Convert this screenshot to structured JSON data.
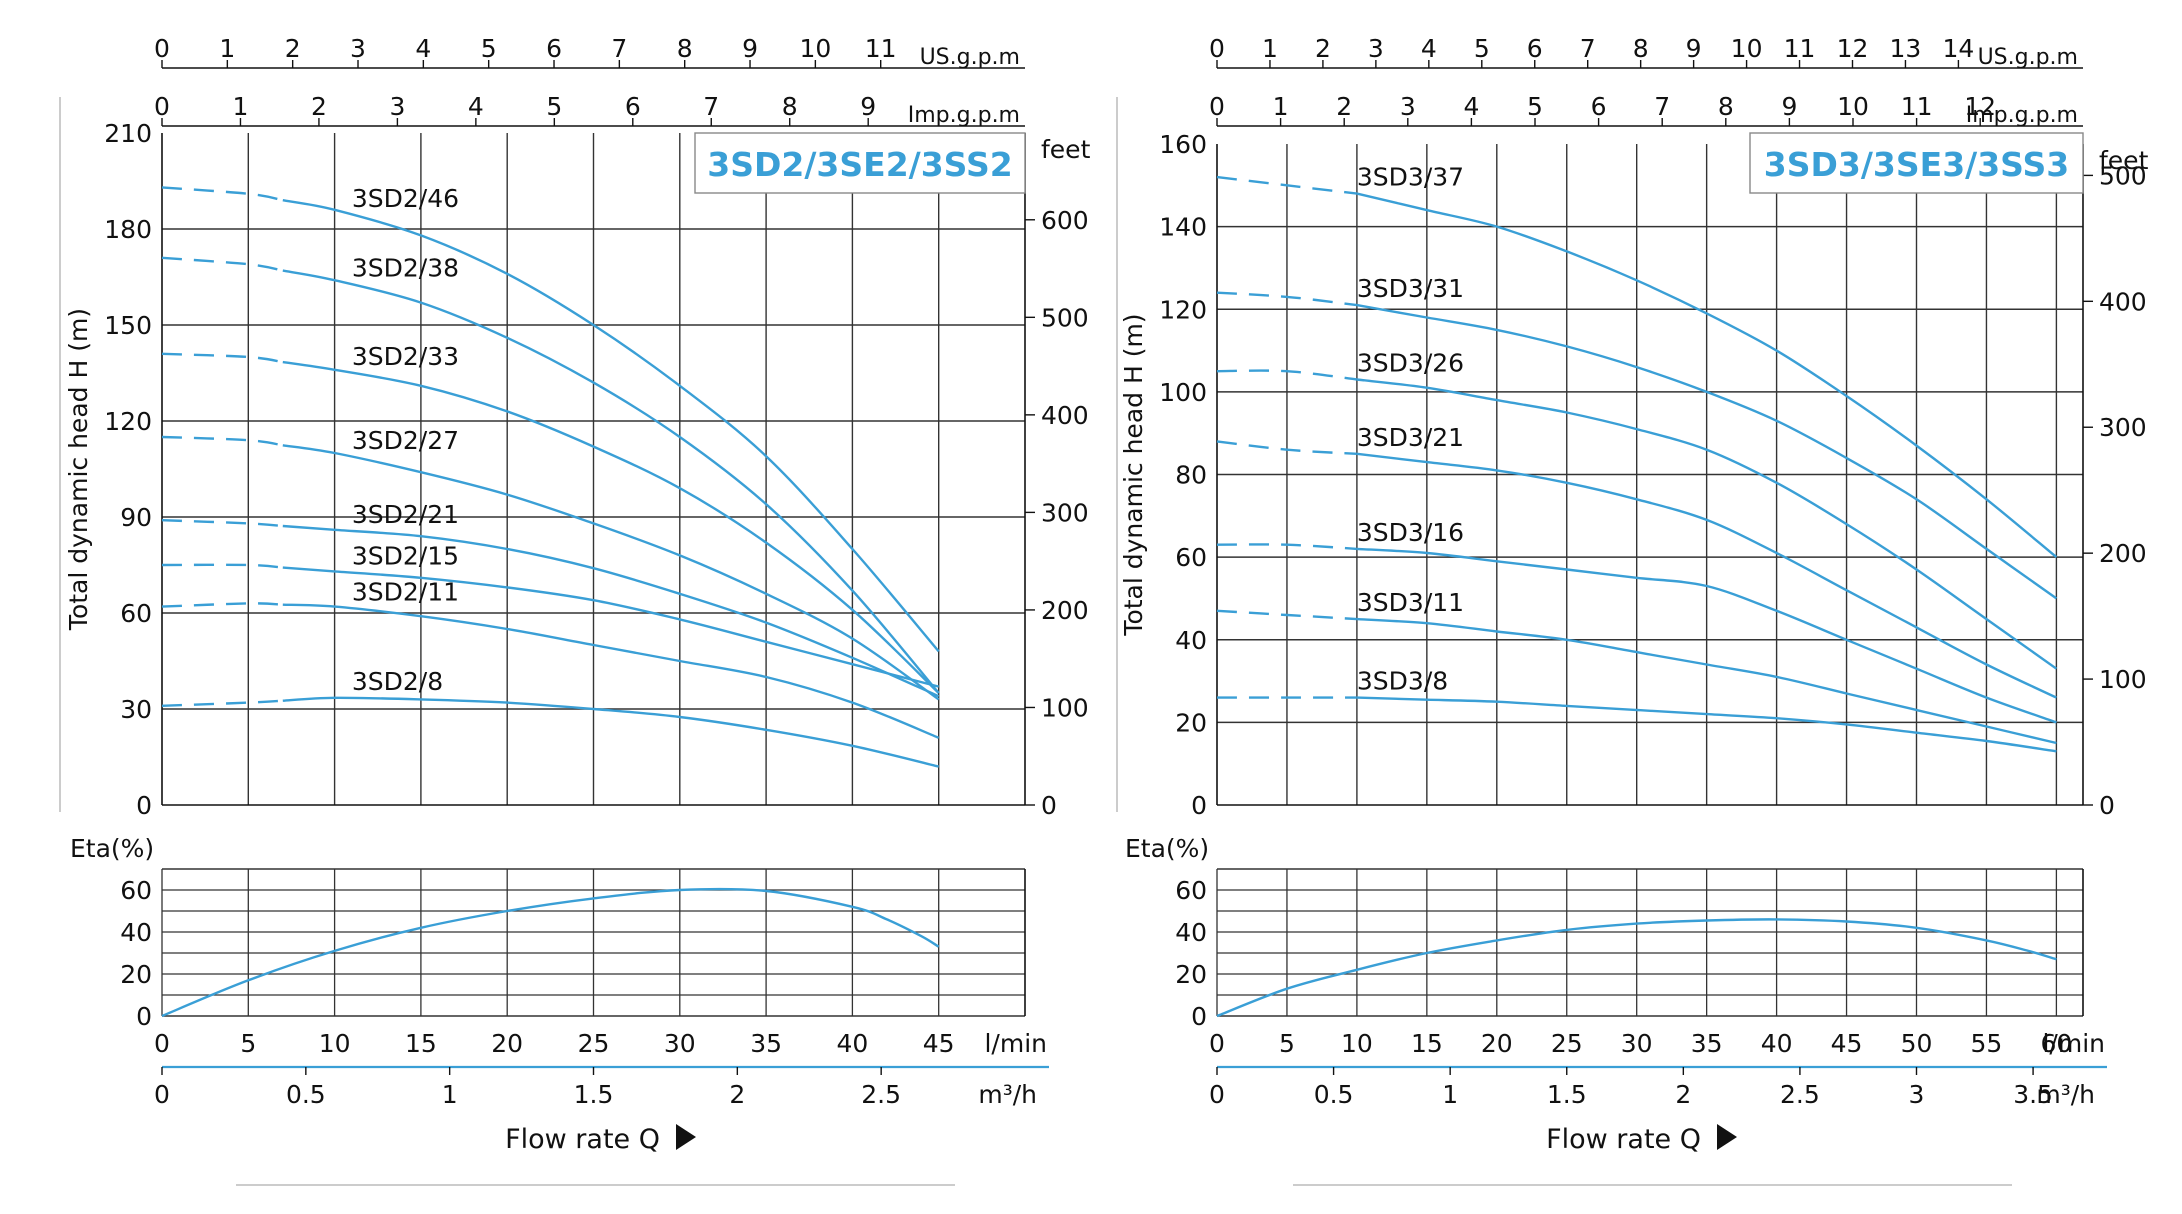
{
  "colors": {
    "curve": "#3a9fd6",
    "badge_text": "#3a9fd6",
    "grid": "#333333",
    "axis": "#111111",
    "flow_line": "#3a9fd6"
  },
  "chart_data": [
    {
      "type": "line",
      "title": "3SD2/3SE2/3SS2",
      "ylabel": "Total dynamic head H (m)",
      "xlabel": "Flow rate Q",
      "x_unit": "l/min",
      "x_ticks": [
        0,
        5,
        10,
        15,
        20,
        25,
        30,
        35,
        40,
        45
      ],
      "xlim": [
        0,
        50
      ],
      "ylim": [
        0,
        210
      ],
      "y_ticks": [
        0,
        30,
        60,
        90,
        120,
        150,
        180,
        210
      ],
      "grid": true,
      "top_axes": [
        {
          "unit": "US.g.p.m",
          "ticks": [
            0,
            1,
            2,
            3,
            4,
            5,
            6,
            7,
            8,
            9,
            10,
            11
          ],
          "factor": 0.264172
        },
        {
          "unit": "Imp.g.p.m",
          "ticks": [
            0,
            1,
            2,
            3,
            4,
            5,
            6,
            7,
            8,
            9
          ],
          "factor": 0.219969
        }
      ],
      "right_axis": {
        "unit": "feet",
        "ticks": [
          0,
          100,
          200,
          300,
          400,
          500,
          600
        ],
        "factor": 3.28084
      },
      "bottom_axis2": {
        "unit": "m³/h",
        "ticks": [
          "0",
          "0.5",
          "1",
          "1.5",
          "2",
          "2.5"
        ],
        "values": [
          0,
          0.5,
          1,
          1.5,
          2,
          2.5
        ],
        "factor": 0.06
      },
      "dash_end_x": 7,
      "series": [
        {
          "name": "3SD2/46",
          "x": [
            0,
            5,
            10,
            15,
            20,
            25,
            30,
            35,
            40,
            45
          ],
          "y": [
            193,
            191,
            186,
            178,
            166,
            150,
            131,
            109,
            80,
            48
          ]
        },
        {
          "name": "3SD2/38",
          "x": [
            0,
            5,
            10,
            15,
            20,
            25,
            30,
            35,
            40,
            45
          ],
          "y": [
            171,
            169,
            164,
            157,
            146,
            132,
            115,
            94,
            67,
            35
          ]
        },
        {
          "name": "3SD2/33",
          "x": [
            0,
            5,
            10,
            15,
            20,
            25,
            30,
            35,
            40,
            45
          ],
          "y": [
            141,
            140,
            136,
            131,
            123,
            112,
            99,
            82,
            61,
            35
          ]
        },
        {
          "name": "3SD2/27",
          "x": [
            0,
            5,
            10,
            15,
            20,
            25,
            30,
            35,
            40,
            45
          ],
          "y": [
            115,
            114,
            110,
            104,
            97,
            88,
            78,
            66,
            52,
            33
          ]
        },
        {
          "name": "3SD2/21",
          "x": [
            0,
            5,
            10,
            15,
            20,
            25,
            30,
            35,
            40,
            45
          ],
          "y": [
            89,
            88,
            86,
            84,
            80,
            74,
            66,
            57,
            46,
            34
          ]
        },
        {
          "name": "3SD2/15",
          "x": [
            0,
            5,
            10,
            15,
            20,
            25,
            30,
            35,
            40,
            45
          ],
          "y": [
            75,
            75,
            73,
            71,
            68,
            64,
            58,
            51,
            44,
            37
          ]
        },
        {
          "name": "3SD2/11",
          "x": [
            0,
            5,
            10,
            15,
            20,
            25,
            30,
            35,
            40,
            45
          ],
          "y": [
            62,
            63,
            62,
            59,
            55,
            50,
            45,
            40,
            32,
            21
          ]
        },
        {
          "name": "3SD2/8",
          "x": [
            0,
            5,
            10,
            15,
            20,
            25,
            30,
            35,
            40,
            45
          ],
          "y": [
            31,
            32,
            33.5,
            33,
            32,
            30,
            27.5,
            23.5,
            18.5,
            12
          ]
        }
      ],
      "series_label_x": 11,
      "efficiency": {
        "label": "Eta(%)",
        "ylim": [
          0,
          70
        ],
        "y_ticks": [
          0,
          20,
          40,
          60
        ],
        "x": [
          0,
          5,
          10,
          15,
          20,
          25,
          30,
          35,
          40,
          42,
          44,
          45
        ],
        "y": [
          0,
          17,
          31,
          42,
          50,
          56,
          60,
          59.5,
          52,
          46,
          38,
          33
        ]
      }
    },
    {
      "type": "line",
      "title": "3SD3/3SE3/3SS3",
      "ylabel": "Total dynamic head H (m)",
      "xlabel": "Flow rate Q",
      "x_unit": "l/min",
      "x_ticks": [
        0,
        5,
        10,
        15,
        20,
        25,
        30,
        35,
        40,
        45,
        50,
        55,
        60
      ],
      "xlim": [
        0,
        62
      ],
      "ylim": [
        0,
        160
      ],
      "y_ticks": [
        0,
        20,
        40,
        60,
        80,
        100,
        120,
        140,
        160
      ],
      "grid": true,
      "top_axes": [
        {
          "unit": "US.g.p.m",
          "ticks": [
            0,
            1,
            2,
            3,
            4,
            5,
            6,
            7,
            8,
            9,
            10,
            11,
            12,
            13,
            14
          ],
          "factor": 0.264172
        },
        {
          "unit": "Imp.g.p.m",
          "ticks": [
            0,
            1,
            2,
            3,
            4,
            5,
            6,
            7,
            8,
            9,
            10,
            11,
            12
          ],
          "factor": 0.219969
        }
      ],
      "right_axis": {
        "unit": "feet",
        "ticks": [
          0,
          100,
          200,
          300,
          400,
          500
        ],
        "factor": 3.28084
      },
      "bottom_axis2": {
        "unit": "m³/h",
        "ticks": [
          "0",
          "0.5",
          "1",
          "1.5",
          "2",
          "2.5",
          "3",
          "3.5"
        ],
        "values": [
          0,
          0.5,
          1,
          1.5,
          2,
          2.5,
          3,
          3.5
        ],
        "factor": 0.06
      },
      "dash_end_x": 10,
      "series": [
        {
          "name": "3SD3/37",
          "x": [
            0,
            5,
            10,
            15,
            20,
            25,
            30,
            35,
            40,
            45,
            50,
            55,
            60
          ],
          "y": [
            152,
            150,
            148,
            144,
            140,
            134,
            127,
            119,
            110,
            99,
            87,
            74,
            60
          ]
        },
        {
          "name": "3SD3/31",
          "x": [
            0,
            5,
            10,
            15,
            20,
            25,
            30,
            35,
            40,
            45,
            50,
            55,
            60
          ],
          "y": [
            124,
            123,
            121,
            118,
            115,
            111,
            106,
            100,
            93,
            84,
            74,
            62,
            50
          ]
        },
        {
          "name": "3SD3/26",
          "x": [
            0,
            5,
            10,
            15,
            20,
            25,
            30,
            35,
            40,
            45,
            50,
            55,
            60
          ],
          "y": [
            105,
            105,
            103,
            101,
            98,
            95,
            91,
            86,
            78,
            68,
            57,
            45,
            33
          ]
        },
        {
          "name": "3SD3/21",
          "x": [
            0,
            5,
            10,
            15,
            20,
            25,
            30,
            35,
            40,
            45,
            50,
            55,
            60
          ],
          "y": [
            88,
            86,
            85,
            83,
            81,
            78,
            74,
            69,
            61,
            52,
            43,
            34,
            26
          ]
        },
        {
          "name": "3SD3/16",
          "x": [
            0,
            5,
            10,
            15,
            20,
            25,
            30,
            35,
            40,
            45,
            50,
            55,
            60
          ],
          "y": [
            63,
            63,
            62,
            61,
            59,
            57,
            55,
            53,
            47,
            40,
            33,
            26,
            20
          ]
        },
        {
          "name": "3SD3/11",
          "x": [
            0,
            5,
            10,
            15,
            20,
            25,
            30,
            35,
            40,
            45,
            50,
            55,
            60
          ],
          "y": [
            47,
            46,
            45,
            44,
            42,
            40,
            37,
            34,
            31,
            27,
            23,
            19,
            15
          ]
        },
        {
          "name": "3SD3/8",
          "x": [
            0,
            5,
            10,
            15,
            20,
            25,
            30,
            35,
            40,
            45,
            50,
            55,
            60
          ],
          "y": [
            26,
            26,
            26,
            25.5,
            25,
            24,
            23,
            22,
            21,
            19.5,
            17.5,
            15.5,
            13
          ]
        }
      ],
      "series_label_x": 10,
      "efficiency": {
        "label": "Eta(%)",
        "ylim": [
          0,
          70
        ],
        "y_ticks": [
          0,
          20,
          40,
          60
        ],
        "x": [
          0,
          5,
          10,
          15,
          20,
          25,
          30,
          35,
          40,
          45,
          50,
          55,
          58,
          60
        ],
        "y": [
          0,
          13,
          22,
          30,
          36,
          41,
          44,
          45.5,
          46,
          45,
          42,
          36,
          31,
          27
        ]
      }
    }
  ]
}
